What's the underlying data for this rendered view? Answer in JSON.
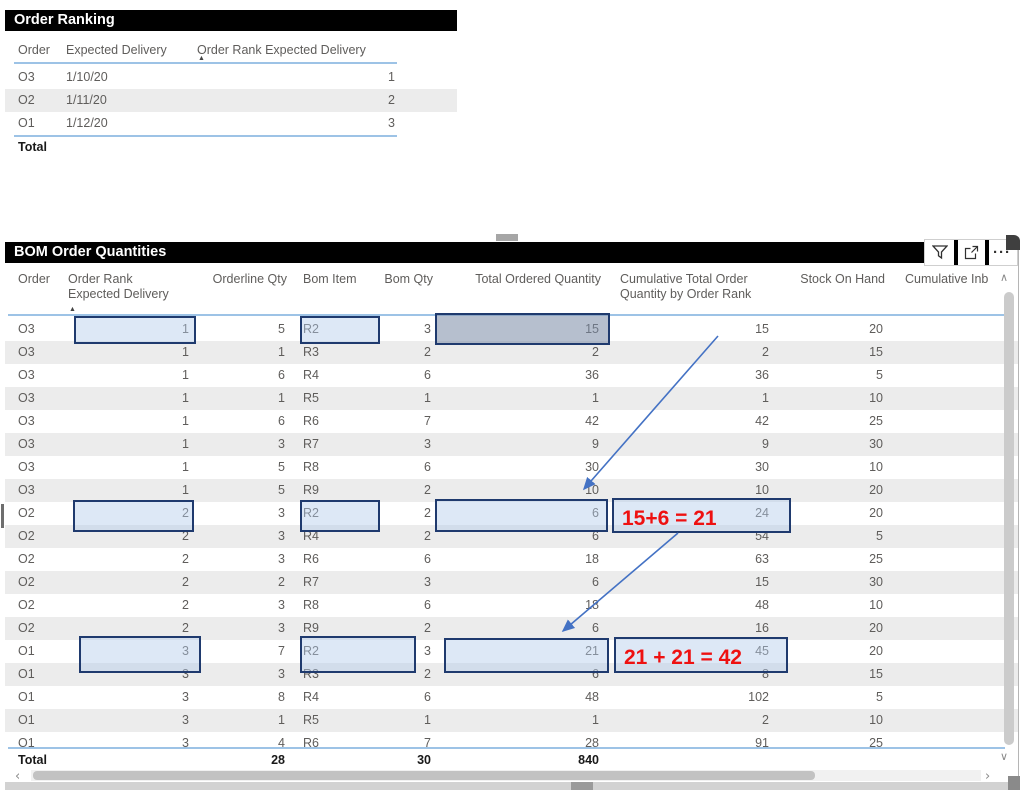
{
  "order_ranking": {
    "title": "Order Ranking",
    "columns": [
      "Order",
      "Expected Delivery",
      "Order Rank Expected Delivery"
    ],
    "sort": {
      "column": "Order Rank Expected Delivery",
      "direction": "ascending"
    },
    "rows": [
      [
        "O3",
        "1/10/20",
        "1"
      ],
      [
        "O2",
        "1/11/20",
        "2"
      ],
      [
        "O1",
        "1/12/20",
        "3"
      ]
    ],
    "total_label": "Total"
  },
  "bom": {
    "title": "BOM Order Quantities",
    "columns": [
      "Order",
      "Order Rank\nExpected Delivery",
      "Orderline Qty",
      "Bom Item",
      "Bom Qty",
      "Total Ordered Quantity",
      "Cumulative Total Order\nQuantity by Order Rank",
      "Stock On Hand",
      "Cumulative Inb"
    ],
    "sort": {
      "column": "Order Rank Expected Delivery",
      "direction": "ascending"
    },
    "rows": [
      [
        "O3",
        "1",
        "5",
        "R2",
        "3",
        "15",
        "15",
        "20",
        ""
      ],
      [
        "O3",
        "1",
        "1",
        "R3",
        "2",
        "2",
        "2",
        "15",
        ""
      ],
      [
        "O3",
        "1",
        "6",
        "R4",
        "6",
        "36",
        "36",
        "5",
        ""
      ],
      [
        "O3",
        "1",
        "1",
        "R5",
        "1",
        "1",
        "1",
        "10",
        ""
      ],
      [
        "O3",
        "1",
        "6",
        "R6",
        "7",
        "42",
        "42",
        "25",
        ""
      ],
      [
        "O3",
        "1",
        "3",
        "R7",
        "3",
        "9",
        "9",
        "30",
        ""
      ],
      [
        "O3",
        "1",
        "5",
        "R8",
        "6",
        "30",
        "30",
        "10",
        ""
      ],
      [
        "O3",
        "1",
        "5",
        "R9",
        "2",
        "10",
        "10",
        "20",
        ""
      ],
      [
        "O2",
        "2",
        "3",
        "R2",
        "2",
        "6",
        "24",
        "20",
        ""
      ],
      [
        "O2",
        "2",
        "3",
        "R4",
        "2",
        "6",
        "54",
        "5",
        ""
      ],
      [
        "O2",
        "2",
        "3",
        "R6",
        "6",
        "18",
        "63",
        "25",
        ""
      ],
      [
        "O2",
        "2",
        "2",
        "R7",
        "3",
        "6",
        "15",
        "30",
        ""
      ],
      [
        "O2",
        "2",
        "3",
        "R8",
        "6",
        "18",
        "48",
        "10",
        ""
      ],
      [
        "O2",
        "2",
        "3",
        "R9",
        "2",
        "6",
        "16",
        "20",
        ""
      ],
      [
        "O1",
        "3",
        "7",
        "R2",
        "3",
        "21",
        "45",
        "20",
        ""
      ],
      [
        "O1",
        "3",
        "3",
        "R3",
        "2",
        "6",
        "8",
        "15",
        ""
      ],
      [
        "O1",
        "3",
        "8",
        "R4",
        "6",
        "48",
        "102",
        "5",
        ""
      ],
      [
        "O1",
        "3",
        "1",
        "R5",
        "1",
        "1",
        "2",
        "10",
        ""
      ],
      [
        "O1",
        "3",
        "4",
        "R6",
        "7",
        "28",
        "91",
        "25",
        ""
      ]
    ],
    "totals": {
      "label": "Total",
      "orderline_qty": "28",
      "bom_qty": "30",
      "total_ordered_quantity": "840"
    },
    "toolbar_icons": [
      "filter-icon",
      "focus-mode-icon",
      "more-options-icon"
    ]
  },
  "annotations": {
    "formula1": "15+6 = 21",
    "formula2": "21 + 21 = 42",
    "highlights": [
      {
        "row": "O3 R2",
        "cells": [
          "Order Rank Expected Delivery",
          "Bom Item",
          "Total Ordered Quantity"
        ]
      },
      {
        "row": "O2 R2",
        "cells": [
          "Order Rank Expected Delivery",
          "Bom Item",
          "Total Ordered Quantity",
          "Cumulative Total Order Quantity by Order Rank"
        ]
      },
      {
        "row": "O1 R2",
        "cells": [
          "Order Rank Expected Delivery",
          "Bom Item",
          "Total Ordered Quantity",
          "Cumulative Total Order Quantity by Order Rank"
        ]
      }
    ]
  },
  "icons": {
    "sort_asc": "▲",
    "scroll_up": "∧",
    "scroll_down": "∨",
    "scroll_left": "‹",
    "scroll_right": "›"
  },
  "colors": {
    "title_bg": "#000000",
    "title_text": "#ffffff",
    "band": "#ececec",
    "divider_blue": "#9dc3e6",
    "highlight_fill": "#dce6f3",
    "highlight_border": "#1f3a6e",
    "selected_fill": "#a9b4c7",
    "formula_red": "#ee1111",
    "arrow_blue": "#4472c4"
  }
}
